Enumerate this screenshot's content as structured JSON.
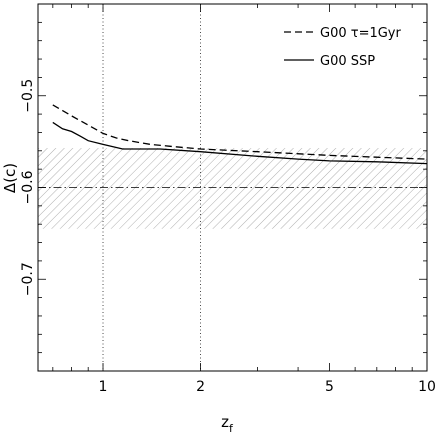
{
  "chart_data": {
    "type": "line",
    "xlabel": "z",
    "xlabel_sub": "f",
    "ylabel": "Δ(c)",
    "xscale": "log",
    "xlim": [
      0.63,
      10
    ],
    "ylim": [
      -0.8,
      -0.4
    ],
    "xticks": [
      {
        "value": 1,
        "label": "1"
      },
      {
        "value": 2,
        "label": "2"
      },
      {
        "value": 5,
        "label": "5"
      },
      {
        "value": 10,
        "label": "10"
      }
    ],
    "yticks": [
      {
        "value": -0.5,
        "label": "−0.5"
      },
      {
        "value": -0.6,
        "label": "−0.6"
      },
      {
        "value": -0.7,
        "label": "−0.7"
      }
    ],
    "vlines": [
      1,
      2
    ],
    "observed_band": {
      "center": -0.6,
      "low": -0.645,
      "high": -0.557
    },
    "legend_position": "top-right",
    "series": [
      {
        "name": "G00 τ=1Gyr",
        "style": "dashed",
        "x": [
          0.7,
          0.8,
          0.9,
          1.0,
          1.1,
          1.2,
          1.4,
          1.6,
          2.0,
          3.0,
          5.0,
          7.0,
          10.0
        ],
        "y": [
          -0.51,
          -0.522,
          -0.532,
          -0.541,
          -0.546,
          -0.549,
          -0.553,
          -0.555,
          -0.558,
          -0.561,
          -0.565,
          -0.567,
          -0.569
        ]
      },
      {
        "name": "G00 SSP",
        "style": "solid",
        "x": [
          0.7,
          0.75,
          0.8,
          0.85,
          0.9,
          1.0,
          1.15,
          1.5,
          2.0,
          3.0,
          4.0,
          5.0,
          7.0,
          10.0
        ],
        "y": [
          -0.529,
          -0.536,
          -0.539,
          -0.544,
          -0.549,
          -0.553,
          -0.558,
          -0.558,
          -0.561,
          -0.566,
          -0.569,
          -0.571,
          -0.572,
          -0.574
        ]
      }
    ]
  }
}
